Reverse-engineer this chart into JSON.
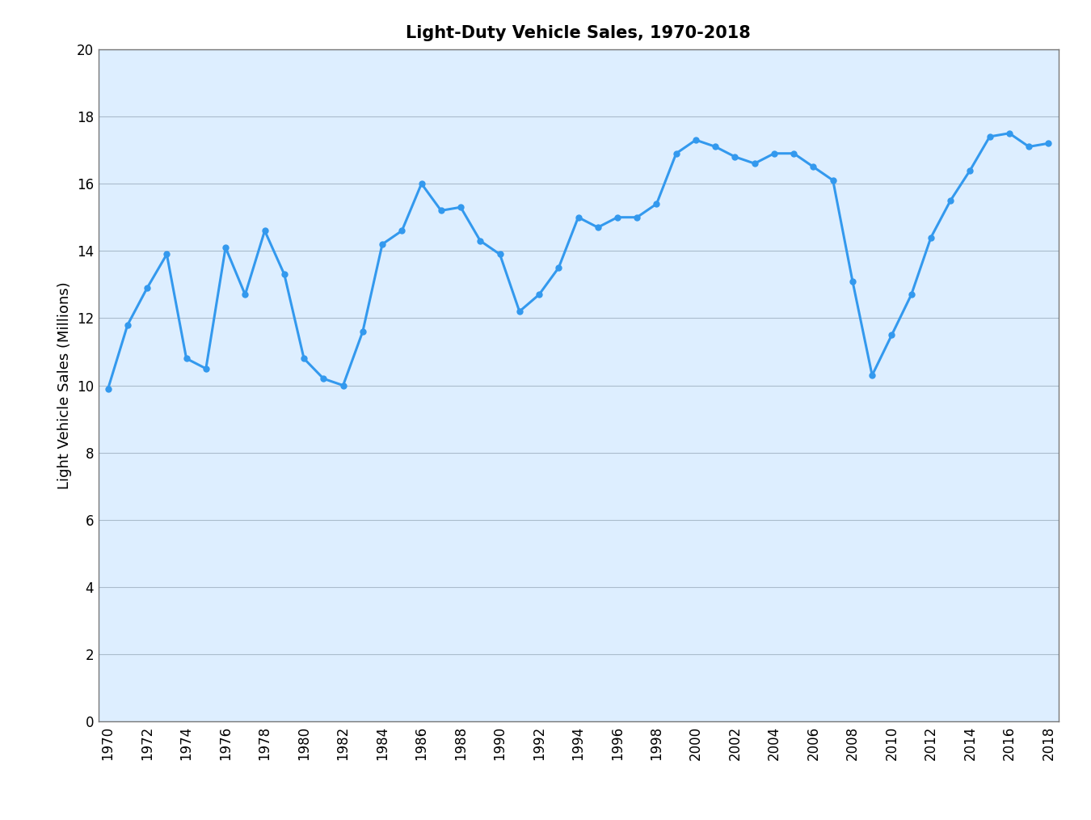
{
  "title": "Light-Duty Vehicle Sales, 1970-2018",
  "xlabel": "",
  "ylabel": "Light Vehicle Sales (Millions)",
  "ylim": [
    0,
    20
  ],
  "yticks": [
    0,
    2,
    4,
    6,
    8,
    10,
    12,
    14,
    16,
    18,
    20
  ],
  "xlim_min": 1969.5,
  "xlim_max": 2018.5,
  "xticks": [
    1970,
    1972,
    1974,
    1976,
    1978,
    1980,
    1982,
    1984,
    1986,
    1988,
    1990,
    1992,
    1994,
    1996,
    1998,
    2000,
    2002,
    2004,
    2006,
    2008,
    2010,
    2012,
    2014,
    2016,
    2018
  ],
  "years": [
    1970,
    1971,
    1972,
    1973,
    1974,
    1975,
    1976,
    1977,
    1978,
    1979,
    1980,
    1981,
    1982,
    1983,
    1984,
    1985,
    1986,
    1987,
    1988,
    1989,
    1990,
    1991,
    1992,
    1993,
    1994,
    1995,
    1996,
    1997,
    1998,
    1999,
    2000,
    2001,
    2002,
    2003,
    2004,
    2005,
    2006,
    2007,
    2008,
    2009,
    2010,
    2011,
    2012,
    2013,
    2014,
    2015,
    2016,
    2017,
    2018
  ],
  "values": [
    9.9,
    11.8,
    12.9,
    13.9,
    10.8,
    10.5,
    14.1,
    12.7,
    14.6,
    13.3,
    10.8,
    10.2,
    10.0,
    11.6,
    14.2,
    14.6,
    16.0,
    15.2,
    15.3,
    14.3,
    13.9,
    12.2,
    12.7,
    13.5,
    15.0,
    14.7,
    15.0,
    15.0,
    15.4,
    16.9,
    17.3,
    17.1,
    16.8,
    16.6,
    16.9,
    16.9,
    16.5,
    16.1,
    13.1,
    10.3,
    11.5,
    12.7,
    14.4,
    15.5,
    16.4,
    17.4,
    17.5,
    17.1,
    17.2
  ],
  "line_color": "#3399EE",
  "marker_color": "#3399EE",
  "bg_color": "#DDEEFF",
  "fig_bg_color": "#FFFFFF",
  "grid_color": "#AABCCC",
  "spine_color": "#777777",
  "title_fontsize": 15,
  "label_fontsize": 13,
  "tick_fontsize": 12,
  "line_width": 2.2,
  "marker_size": 5
}
